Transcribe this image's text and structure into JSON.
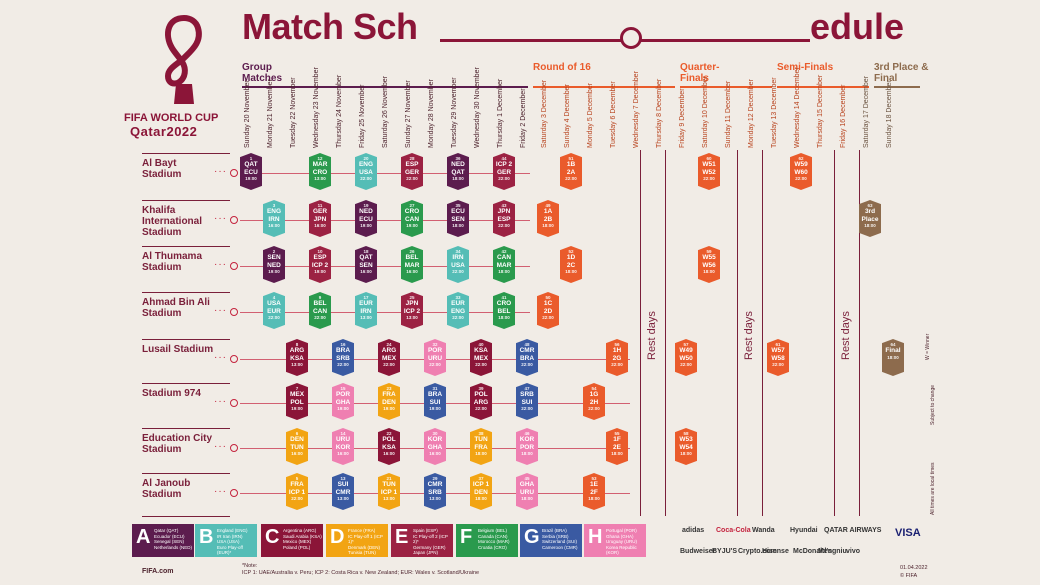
{
  "title": {
    "main": "Match Sch",
    "end": "edule"
  },
  "logo": {
    "brand": "FIFA WORLD CUP",
    "event": "Qatar2022"
  },
  "sections": [
    {
      "key": "group",
      "label": "Group Matches",
      "color": "#5c1c4e"
    },
    {
      "key": "r16",
      "label": "Round of 16",
      "color": "#ea5b2b"
    },
    {
      "key": "qf",
      "label": "Quarter-Finals",
      "color": "#ea5b2b"
    },
    {
      "key": "sf",
      "label": "Semi-Finals",
      "color": "#ea5b2b"
    },
    {
      "key": "final",
      "label": "3rd Place & Final",
      "color": "#8d6b4d"
    }
  ],
  "days": [
    "Sunday 20 November",
    "Monday 21 November",
    "Tuesday 22 November",
    "Wednesday 23 November",
    "Thursday 24 November",
    "Friday 25 November",
    "Saturday 26 November",
    "Sunday 27 November",
    "Monday 28 November",
    "Tuesday 29 November",
    "Wednesday 30 November",
    "Thursday 1 December",
    "Friday 2 December",
    "Saturday 3 December",
    "Sunday 4 December",
    "Monday 5 December",
    "Tuesday 6 December",
    "Wednesday 7 December",
    "Thursday 8 December",
    "Friday 9 December",
    "Saturday 10 December",
    "Sunday 11 December",
    "Monday 12 December",
    "Tuesday 13 December",
    "Wednesday 14 December",
    "Thursday 15 December",
    "Friday 16 December",
    "Saturday 17 December",
    "Sunday 18 December"
  ],
  "stadiums": [
    "Al Bayt Stadium",
    "Khalifa International Stadium",
    "Al Thumama Stadium",
    "Ahmad Bin Ali Stadium",
    "Lusail Stadium",
    "Stadium 974",
    "Education City Stadium",
    "Al Janoub Stadium"
  ],
  "rest_days": [
    "Rest days",
    "Rest days",
    "Rest days"
  ],
  "matches": [
    {
      "n": "1",
      "a": "QAT",
      "b": "ECU",
      "t": "19:00",
      "c": "A",
      "row": 0,
      "day": 0
    },
    {
      "n": "12",
      "a": "MAR",
      "b": "CRO",
      "t": "13:00",
      "c": "F",
      "row": 0,
      "day": 3
    },
    {
      "n": "20",
      "a": "ENG",
      "b": "USA",
      "t": "22:00",
      "c": "B",
      "row": 0,
      "day": 5
    },
    {
      "n": "28",
      "a": "ESP",
      "b": "GER",
      "t": "22:00",
      "c": "E",
      "row": 0,
      "day": 7
    },
    {
      "n": "36",
      "a": "NED",
      "b": "QAT",
      "t": "18:00",
      "c": "A",
      "row": 0,
      "day": 9
    },
    {
      "n": "44",
      "a": "ICP 2",
      "b": "GER",
      "t": "22:00",
      "c": "E",
      "row": 0,
      "day": 11
    },
    {
      "n": "51",
      "a": "1B",
      "b": "2A",
      "t": "22:00",
      "c": "K",
      "row": 0,
      "day": 14
    },
    {
      "n": "60",
      "a": "W51",
      "b": "W52",
      "t": "22:00",
      "c": "K",
      "row": 0,
      "day": 20
    },
    {
      "n": "62",
      "a": "W59",
      "b": "W60",
      "t": "22:00",
      "c": "K",
      "row": 0,
      "day": 24
    },
    {
      "n": "3",
      "a": "ENG",
      "b": "IRN",
      "t": "16:00",
      "c": "B",
      "row": 1,
      "day": 1
    },
    {
      "n": "11",
      "a": "GER",
      "b": "JPN",
      "t": "16:00",
      "c": "E",
      "row": 1,
      "day": 3
    },
    {
      "n": "19",
      "a": "NED",
      "b": "ECU",
      "t": "19:00",
      "c": "A",
      "row": 1,
      "day": 5
    },
    {
      "n": "27",
      "a": "CRO",
      "b": "CAN",
      "t": "19:00",
      "c": "F",
      "row": 1,
      "day": 7
    },
    {
      "n": "35",
      "a": "ECU",
      "b": "SEN",
      "t": "18:00",
      "c": "A",
      "row": 1,
      "day": 9
    },
    {
      "n": "43",
      "a": "JPN",
      "b": "ESP",
      "t": "22:00",
      "c": "E",
      "row": 1,
      "day": 11
    },
    {
      "n": "49",
      "a": "1A",
      "b": "2B",
      "t": "18:00",
      "c": "K",
      "row": 1,
      "day": 13
    },
    {
      "n": "63",
      "a": "3rd",
      "b": "Place",
      "t": "18:00",
      "c": "F2",
      "row": 1,
      "day": 27
    },
    {
      "n": "2",
      "a": "SEN",
      "b": "NED",
      "t": "19:00",
      "c": "A",
      "row": 2,
      "day": 1
    },
    {
      "n": "10",
      "a": "ESP",
      "b": "ICP 2",
      "t": "19:00",
      "c": "E",
      "row": 2,
      "day": 3
    },
    {
      "n": "18",
      "a": "QAT",
      "b": "SEN",
      "t": "16:00",
      "c": "A",
      "row": 2,
      "day": 5
    },
    {
      "n": "26",
      "a": "BEL",
      "b": "MAR",
      "t": "16:00",
      "c": "F",
      "row": 2,
      "day": 7
    },
    {
      "n": "34",
      "a": "IRN",
      "b": "USA",
      "t": "22:00",
      "c": "B",
      "row": 2,
      "day": 9
    },
    {
      "n": "42",
      "a": "CAN",
      "b": "MAR",
      "t": "18:00",
      "c": "F",
      "row": 2,
      "day": 11
    },
    {
      "n": "52",
      "a": "1D",
      "b": "2C",
      "t": "18:00",
      "c": "K",
      "row": 2,
      "day": 14
    },
    {
      "n": "59",
      "a": "W55",
      "b": "W56",
      "t": "18:00",
      "c": "K",
      "row": 2,
      "day": 20
    },
    {
      "n": "4",
      "a": "USA",
      "b": "EUR",
      "t": "22:00",
      "c": "B",
      "row": 3,
      "day": 1
    },
    {
      "n": "9",
      "a": "BEL",
      "b": "CAN",
      "t": "22:00",
      "c": "F",
      "row": 3,
      "day": 3
    },
    {
      "n": "17",
      "a": "EUR",
      "b": "IRN",
      "t": "13:00",
      "c": "B",
      "row": 3,
      "day": 5
    },
    {
      "n": "25",
      "a": "JPN",
      "b": "ICP 2",
      "t": "13:00",
      "c": "E",
      "row": 3,
      "day": 7
    },
    {
      "n": "33",
      "a": "EUR",
      "b": "ENG",
      "t": "22:00",
      "c": "B",
      "row": 3,
      "day": 9
    },
    {
      "n": "41",
      "a": "CRO",
      "b": "BEL",
      "t": "18:00",
      "c": "F",
      "row": 3,
      "day": 11
    },
    {
      "n": "50",
      "a": "1C",
      "b": "2D",
      "t": "22:00",
      "c": "K",
      "row": 3,
      "day": 13
    },
    {
      "n": "8",
      "a": "ARG",
      "b": "KSA",
      "t": "13:00",
      "c": "C",
      "row": 4,
      "day": 2
    },
    {
      "n": "16",
      "a": "BRA",
      "b": "SRB",
      "t": "22:00",
      "c": "G",
      "row": 4,
      "day": 4
    },
    {
      "n": "24",
      "a": "ARG",
      "b": "MEX",
      "t": "22:00",
      "c": "C",
      "row": 4,
      "day": 6
    },
    {
      "n": "32",
      "a": "POR",
      "b": "URU",
      "t": "22:00",
      "c": "H",
      "row": 4,
      "day": 8
    },
    {
      "n": "40",
      "a": "KSA",
      "b": "MEX",
      "t": "22:00",
      "c": "C",
      "row": 4,
      "day": 10
    },
    {
      "n": "48",
      "a": "CMR",
      "b": "BRA",
      "t": "22:00",
      "c": "G",
      "row": 4,
      "day": 12
    },
    {
      "n": "56",
      "a": "1H",
      "b": "2G",
      "t": "22:00",
      "c": "K",
      "row": 4,
      "day": 16
    },
    {
      "n": "57",
      "a": "W49",
      "b": "W50",
      "t": "22:00",
      "c": "K",
      "row": 4,
      "day": 19
    },
    {
      "n": "61",
      "a": "W57",
      "b": "W58",
      "t": "22:00",
      "c": "K",
      "row": 4,
      "day": 23
    },
    {
      "n": "64",
      "a": "Final",
      "b": "",
      "t": "18:00",
      "c": "F2",
      "row": 4,
      "day": 28
    },
    {
      "n": "7",
      "a": "MEX",
      "b": "POL",
      "t": "19:00",
      "c": "C",
      "row": 5,
      "day": 2
    },
    {
      "n": "15",
      "a": "POR",
      "b": "GHA",
      "t": "19:00",
      "c": "H",
      "row": 5,
      "day": 4
    },
    {
      "n": "23",
      "a": "FRA",
      "b": "DEN",
      "t": "19:00",
      "c": "D",
      "row": 5,
      "day": 6
    },
    {
      "n": "31",
      "a": "BRA",
      "b": "SUI",
      "t": "19:00",
      "c": "G",
      "row": 5,
      "day": 8
    },
    {
      "n": "39",
      "a": "POL",
      "b": "ARG",
      "t": "22:00",
      "c": "C",
      "row": 5,
      "day": 10
    },
    {
      "n": "47",
      "a": "SRB",
      "b": "SUI",
      "t": "22:00",
      "c": "G",
      "row": 5,
      "day": 12
    },
    {
      "n": "54",
      "a": "1G",
      "b": "2H",
      "t": "22:00",
      "c": "K",
      "row": 5,
      "day": 15
    },
    {
      "n": "6",
      "a": "DEN",
      "b": "TUN",
      "t": "16:00",
      "c": "D",
      "row": 6,
      "day": 2
    },
    {
      "n": "14",
      "a": "URU",
      "b": "KOR",
      "t": "16:00",
      "c": "H",
      "row": 6,
      "day": 4
    },
    {
      "n": "22",
      "a": "POL",
      "b": "KSA",
      "t": "16:00",
      "c": "C",
      "row": 6,
      "day": 6
    },
    {
      "n": "30",
      "a": "KOR",
      "b": "GHA",
      "t": "16:00",
      "c": "H",
      "row": 6,
      "day": 8
    },
    {
      "n": "38",
      "a": "TUN",
      "b": "FRA",
      "t": "18:00",
      "c": "D",
      "row": 6,
      "day": 10
    },
    {
      "n": "46",
      "a": "KOR",
      "b": "POR",
      "t": "18:00",
      "c": "H",
      "row": 6,
      "day": 12
    },
    {
      "n": "55",
      "a": "1F",
      "b": "2E",
      "t": "18:00",
      "c": "K",
      "row": 6,
      "day": 16
    },
    {
      "n": "58",
      "a": "W53",
      "b": "W54",
      "t": "18:00",
      "c": "K",
      "row": 6,
      "day": 19
    },
    {
      "n": "5",
      "a": "FRA",
      "b": "ICP 1",
      "t": "22:00",
      "c": "D",
      "row": 7,
      "day": 2
    },
    {
      "n": "13",
      "a": "SUI",
      "b": "CMR",
      "t": "13:00",
      "c": "G",
      "row": 7,
      "day": 4
    },
    {
      "n": "21",
      "a": "TUN",
      "b": "ICP 1",
      "t": "13:00",
      "c": "D",
      "row": 7,
      "day": 6
    },
    {
      "n": "29",
      "a": "CMR",
      "b": "SRB",
      "t": "13:00",
      "c": "G",
      "row": 7,
      "day": 8
    },
    {
      "n": "37",
      "a": "ICP 1",
      "b": "DEN",
      "t": "18:00",
      "c": "D",
      "row": 7,
      "day": 10
    },
    {
      "n": "45",
      "a": "GHA",
      "b": "URU",
      "t": "18:00",
      "c": "H",
      "row": 7,
      "day": 12
    },
    {
      "n": "53",
      "a": "1E",
      "b": "2F",
      "t": "18:00",
      "c": "K",
      "row": 7,
      "day": 15
    }
  ],
  "legend": [
    {
      "g": "A",
      "c": "A",
      "lines": [
        "Qatar (QAT)",
        "Ecuador (ECU)",
        "Senegal (SEN)",
        "Netherlands (NED)"
      ]
    },
    {
      "g": "B",
      "c": "B",
      "lines": [
        "England (ENG)",
        "IR Iran (IRN)",
        "USA (USA)",
        "Euro Play-off (EUR)*"
      ]
    },
    {
      "g": "C",
      "c": "C",
      "lines": [
        "Argentina (ARG)",
        "Saudi Arabia (KSA)",
        "Mexico (MEX)",
        "Poland (POL)"
      ]
    },
    {
      "g": "D",
      "c": "D",
      "lines": [
        "France (FRA)",
        "IC Play-off 1 (ICP 1)*",
        "Denmark (DEN)",
        "Tunisia (TUN)"
      ]
    },
    {
      "g": "E",
      "c": "E",
      "lines": [
        "Spain (ESP)",
        "IC Play-off 2 (ICP 2)*",
        "Germany (GER)",
        "Japan (JPN)"
      ]
    },
    {
      "g": "F",
      "c": "F",
      "lines": [
        "Belgium (BEL)",
        "Canada (CAN)",
        "Morocco (MAR)",
        "Croatia (CRO)"
      ]
    },
    {
      "g": "G",
      "c": "G",
      "lines": [
        "Brazil (BRA)",
        "Serbia (SRB)",
        "Switzerland (SUI)",
        "Cameroon (CMR)"
      ]
    },
    {
      "g": "H",
      "c": "H",
      "lines": [
        "Portugal (POR)",
        "Ghana (GHA)",
        "Uruguay (URU)",
        "Korea Republic (KOR)"
      ]
    }
  ],
  "note": {
    "label": "*Note:",
    "text": "ICP 1: UAE/Australia v. Peru;  ICP 2: Costa Rica v. New Zealand;  EUR: Wales v. Scotland/Ukraine"
  },
  "footer": {
    "site": "FIFA.com",
    "date": "01.04.2022",
    "copyright": "© FIFA"
  },
  "side_notes": [
    "W = Winner",
    "Subject to change",
    "All times are local times"
  ],
  "sponsors": [
    "adidas",
    "Coca-Cola",
    "Wanda",
    "Hyundai",
    "QATAR AIRWAYS",
    "VISA",
    "Budweiser",
    "BYJU'S",
    "Crypto.com",
    "Hisense",
    "McDonald's",
    "Mengniu",
    "vivo"
  ]
}
